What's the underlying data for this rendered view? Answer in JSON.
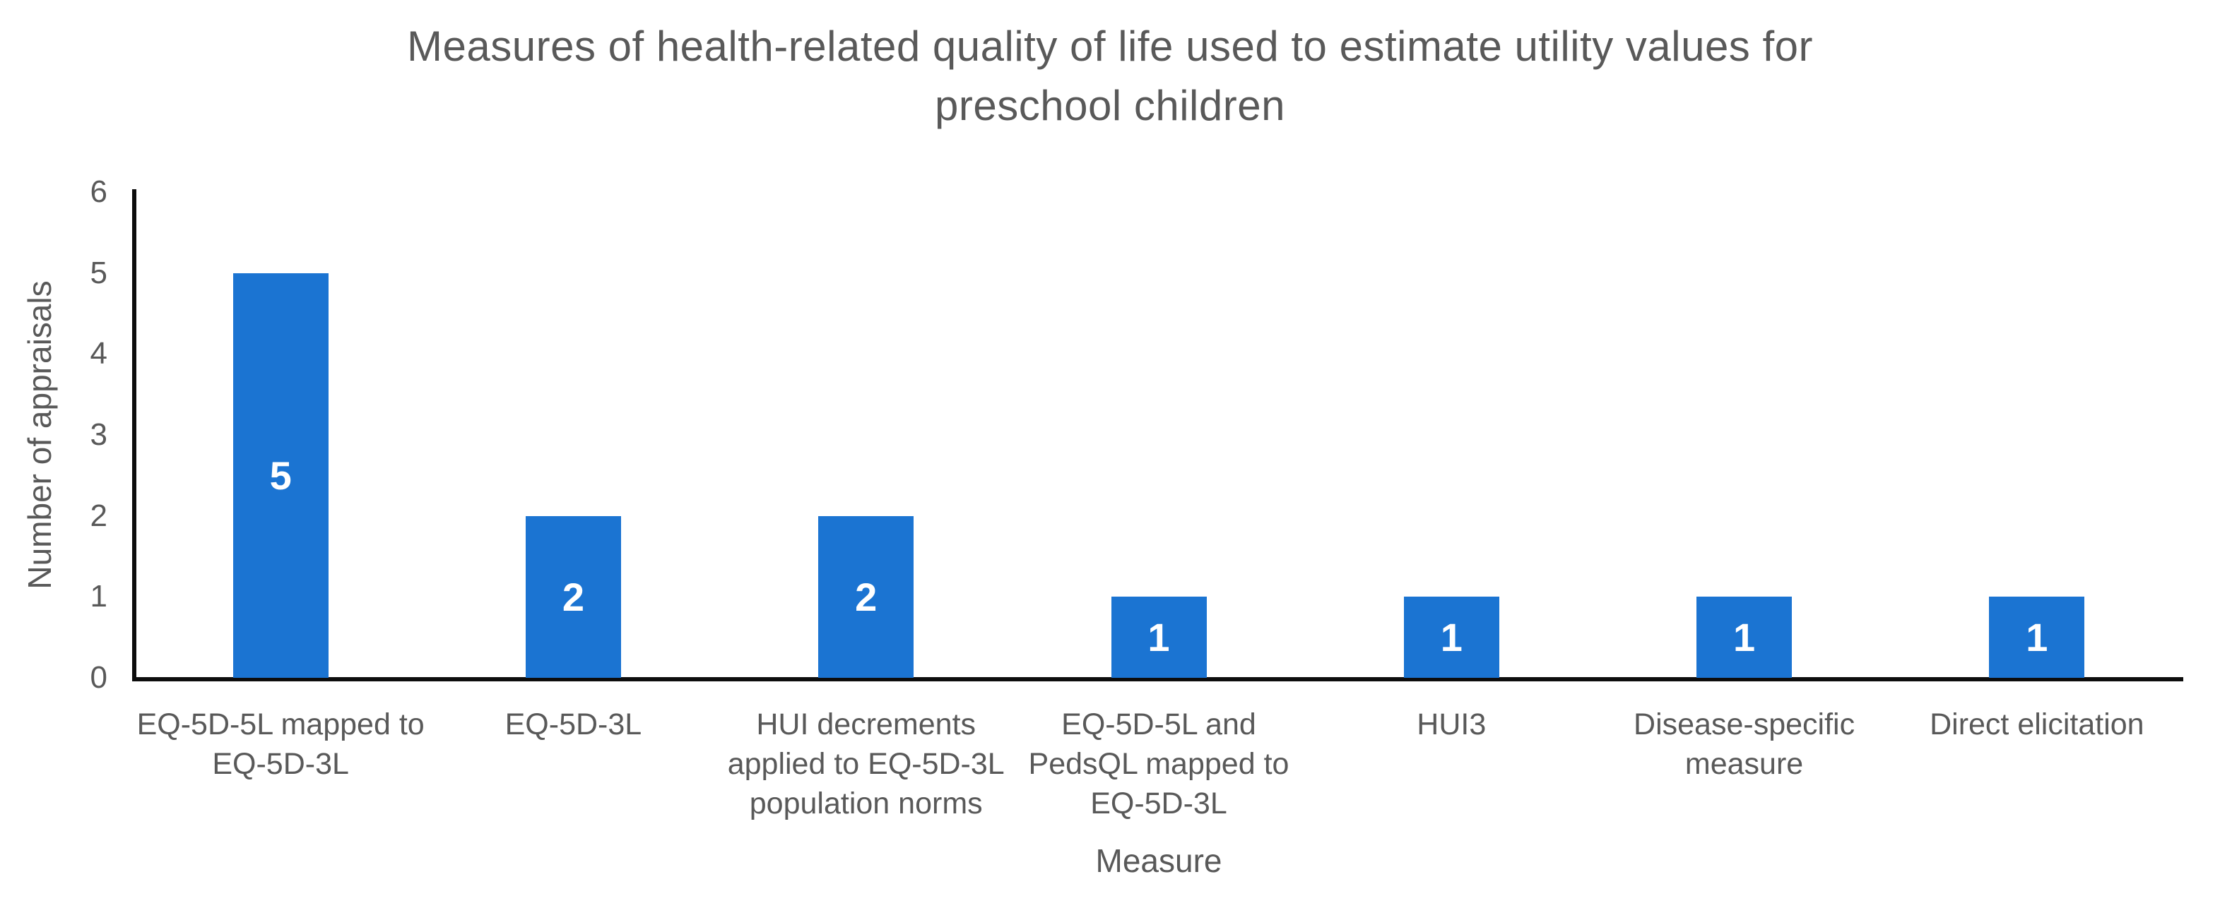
{
  "title": "Measures of health-related quality of life used to estimate utility values for preschool children",
  "title_lines": [
    "Measures of health-related quality of life used to estimate utility values for",
    "preschool children"
  ],
  "chart_data": {
    "type": "bar",
    "title": "Measures of health-related quality of life used to estimate utility values for preschool children",
    "categories": [
      "EQ-5D-5L mapped to EQ-5D-3L",
      "EQ-5D-3L",
      "HUI decrements applied to EQ-5D-3L population norms",
      "EQ-5D-5L and PedsQL mapped to EQ-5D-3L",
      "HUI3",
      "Disease-specific measure",
      "Direct elicitation"
    ],
    "category_lines": [
      [
        "EQ-5D-5L mapped to",
        "EQ-5D-3L"
      ],
      [
        "EQ-5D-3L"
      ],
      [
        "HUI decrements",
        "applied to EQ-5D-3L",
        "population norms"
      ],
      [
        "EQ-5D-5L and",
        "PedsQL mapped to",
        "EQ-5D-3L"
      ],
      [
        "HUI3"
      ],
      [
        "Disease-specific",
        "measure"
      ],
      [
        "Direct elicitation"
      ]
    ],
    "values": [
      5,
      2,
      2,
      1,
      1,
      1,
      1
    ],
    "data_labels": [
      "5",
      "2",
      "2",
      "1",
      "1",
      "1",
      "1"
    ],
    "xlabel": "Measure",
    "ylabel": "Number of appraisals",
    "ylim": [
      0,
      6
    ],
    "yticks": [
      0,
      1,
      2,
      3,
      4,
      5,
      6
    ],
    "grid": false,
    "legend": false,
    "bar_color": "#1b74d2",
    "data_label_color": "#ffffff",
    "text_color": "#595959",
    "axis_color": "#0d0d0d"
  }
}
